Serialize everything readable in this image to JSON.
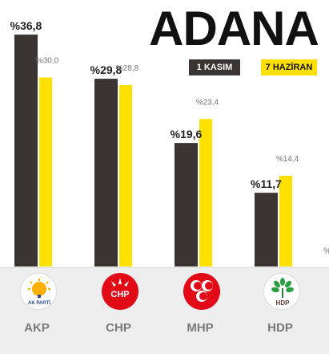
{
  "title": "ADANA",
  "legend": [
    {
      "label": "1 KASIM",
      "color": "#3a3432"
    },
    {
      "label": "7 HAZİRAN",
      "color": "#ffe000"
    }
  ],
  "chart_data": {
    "type": "bar",
    "title": "ADANA",
    "categories": [
      "AKP",
      "CHP",
      "MHP",
      "HDP"
    ],
    "series": [
      {
        "name": "1 KASIM",
        "color": "#3a3432",
        "values": [
          36.8,
          29.8,
          19.6,
          11.7
        ],
        "labels": [
          "%36,8",
          "%29,8",
          "%19,6",
          "%11,7"
        ]
      },
      {
        "name": "7 HAZİRAN",
        "color": "#ffe000",
        "values": [
          30.0,
          28.8,
          23.4,
          14.4
        ],
        "labels": [
          "%30,0",
          "%28,8",
          "%23,4",
          "%14,4"
        ]
      }
    ],
    "partial_label": "%",
    "ylim": [
      0,
      40
    ],
    "grid": false,
    "legend_position": "top-right"
  },
  "parties": [
    {
      "name": "AKP",
      "logo": "akp-logo-icon",
      "logo_text": "AK PARTİ"
    },
    {
      "name": "CHP",
      "logo": "chp-logo-icon",
      "logo_text": "CHP"
    },
    {
      "name": "MHP",
      "logo": "mhp-logo-icon",
      "logo_text": ""
    },
    {
      "name": "HDP",
      "logo": "hdp-logo-icon",
      "logo_text": "HDP"
    }
  ]
}
